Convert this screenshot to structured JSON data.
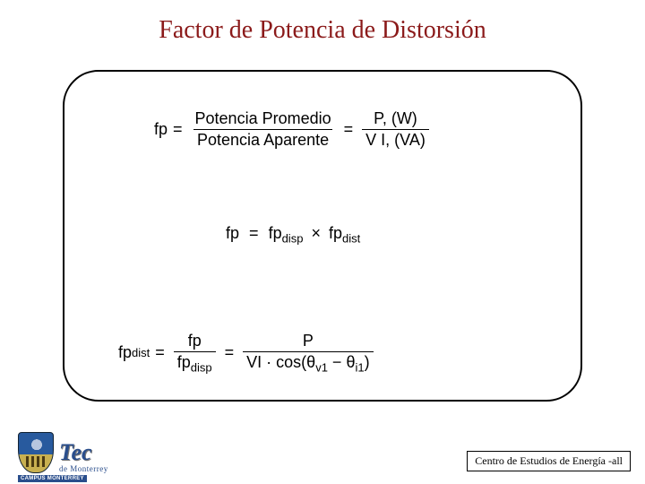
{
  "title": "Factor de Potencia de Distorsión",
  "eq1": {
    "lhs": "fp",
    "frac1_num": "Potencia Promedio",
    "frac1_den": "Potencia Aparente",
    "frac2_num": "P, (W)",
    "frac2_den": "V I, (VA)"
  },
  "eq2": {
    "lhs": "fp",
    "term1": "fp",
    "term1_sub": "disp",
    "term2": "fp",
    "term2_sub": "dist"
  },
  "eq3": {
    "lhs": "fp",
    "lhs_sub": "dist",
    "frac1_num": "fp",
    "frac1_den": "fp",
    "frac1_den_sub": "disp",
    "frac2_num": "P",
    "frac2_den_left": "VI · cos(",
    "frac2_den_theta1": "θ",
    "frac2_den_sub1": "v1",
    "frac2_den_minus": " − ",
    "frac2_den_theta2": "θ",
    "frac2_den_sub2": "i1",
    "frac2_den_right": ")"
  },
  "logo": {
    "tec": "Tec",
    "de": "de Monterrey",
    "campus": "CAMPUS MONTERREY"
  },
  "footer": "Centro de Estudios de Energía -all"
}
